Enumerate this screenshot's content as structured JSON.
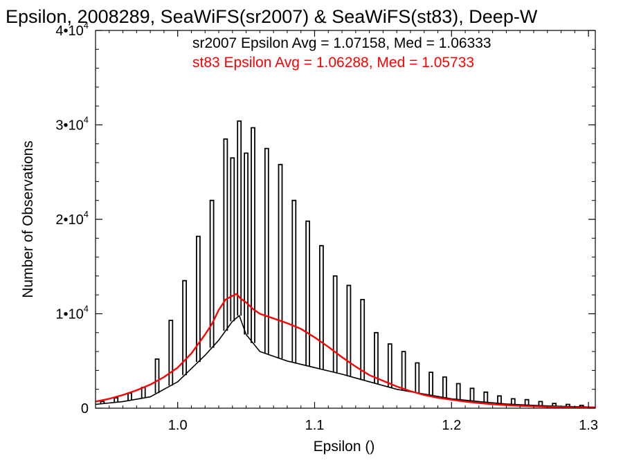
{
  "chart_data": {
    "type": "bar",
    "title": "Epsilon, 2008289, SeaWiFS(sr2007) & SeaWiFS(st83), Deep-W",
    "xlabel": "Epsilon ()",
    "ylabel": "Number of Observations",
    "xlim": [
      0.94,
      1.305
    ],
    "ylim": [
      0,
      40000
    ],
    "x_ticks": [
      {
        "value": 1.0,
        "label": "1.0"
      },
      {
        "value": 1.1,
        "label": "1.1"
      },
      {
        "value": 1.2,
        "label": "1.2"
      },
      {
        "value": 1.3,
        "label": "1.3"
      }
    ],
    "y_ticks": [
      {
        "value": 0,
        "mantissa": "0",
        "exponent": ""
      },
      {
        "value": 10000,
        "mantissa": "1•10",
        "exponent": "4"
      },
      {
        "value": 20000,
        "mantissa": "2•10",
        "exponent": "4"
      },
      {
        "value": 30000,
        "mantissa": "3•10",
        "exponent": "4"
      },
      {
        "value": 40000,
        "mantissa": "4•10",
        "exponent": "4"
      }
    ],
    "annotations": [
      {
        "text": "sr2007 Epsilon Avg = 1.07158, Med = 1.06333",
        "color": "#000000"
      },
      {
        "text": "st83 Epsilon Avg = 1.06288, Med = 1.05733",
        "color": "#ff0000"
      }
    ],
    "grid": false,
    "series": [
      {
        "style": "histogram-spikes",
        "color": "#000000",
        "spikes": [
          [
            0.945,
            700
          ],
          [
            0.955,
            1100
          ],
          [
            0.965,
            1600
          ],
          [
            0.975,
            2200
          ],
          [
            0.985,
            5200
          ],
          [
            0.995,
            9300
          ],
          [
            1.005,
            13500
          ],
          [
            1.015,
            18200
          ],
          [
            1.025,
            22000
          ],
          [
            1.035,
            28500
          ],
          [
            1.04,
            26500
          ],
          [
            1.045,
            30400
          ],
          [
            1.05,
            27000
          ],
          [
            1.055,
            29700
          ],
          [
            1.065,
            27500
          ],
          [
            1.075,
            25800
          ],
          [
            1.085,
            22000
          ],
          [
            1.095,
            19800
          ],
          [
            1.105,
            17200
          ],
          [
            1.115,
            14000
          ],
          [
            1.125,
            13000
          ],
          [
            1.135,
            11500
          ],
          [
            1.145,
            8000
          ],
          [
            1.155,
            6800
          ],
          [
            1.165,
            6000
          ],
          [
            1.175,
            4800
          ],
          [
            1.185,
            3800
          ],
          [
            1.195,
            3300
          ],
          [
            1.205,
            2600
          ],
          [
            1.215,
            2100
          ],
          [
            1.225,
            1700
          ],
          [
            1.235,
            1300
          ],
          [
            1.245,
            1000
          ],
          [
            1.255,
            900
          ],
          [
            1.265,
            700
          ],
          [
            1.275,
            500
          ],
          [
            1.285,
            400
          ],
          [
            1.295,
            300
          ]
        ],
        "baseline": [
          [
            0.94,
            400
          ],
          [
            0.96,
            700
          ],
          [
            0.98,
            1200
          ],
          [
            1.0,
            2800
          ],
          [
            1.02,
            5600
          ],
          [
            1.03,
            7200
          ],
          [
            1.04,
            9200
          ],
          [
            1.045,
            9800
          ],
          [
            1.05,
            7800
          ],
          [
            1.06,
            6000
          ],
          [
            1.08,
            5000
          ],
          [
            1.1,
            4300
          ],
          [
            1.12,
            3600
          ],
          [
            1.14,
            2800
          ],
          [
            1.16,
            2000
          ],
          [
            1.18,
            1500
          ],
          [
            1.2,
            1000
          ],
          [
            1.22,
            700
          ],
          [
            1.24,
            450
          ],
          [
            1.26,
            300
          ],
          [
            1.28,
            200
          ],
          [
            1.305,
            100
          ]
        ]
      },
      {
        "style": "line",
        "color": "#ff0000",
        "points": [
          [
            0.94,
            700
          ],
          [
            0.95,
            1000
          ],
          [
            0.96,
            1400
          ],
          [
            0.97,
            1900
          ],
          [
            0.98,
            2500
          ],
          [
            0.99,
            3300
          ],
          [
            1.0,
            4300
          ],
          [
            1.01,
            5800
          ],
          [
            1.02,
            7800
          ],
          [
            1.025,
            8900
          ],
          [
            1.03,
            10400
          ],
          [
            1.035,
            11500
          ],
          [
            1.04,
            11900
          ],
          [
            1.043,
            12100
          ],
          [
            1.046,
            11600
          ],
          [
            1.05,
            11200
          ],
          [
            1.055,
            10500
          ],
          [
            1.06,
            10000
          ],
          [
            1.07,
            9500
          ],
          [
            1.08,
            9000
          ],
          [
            1.09,
            8400
          ],
          [
            1.1,
            7500
          ],
          [
            1.11,
            6500
          ],
          [
            1.12,
            5400
          ],
          [
            1.13,
            4400
          ],
          [
            1.14,
            3500
          ],
          [
            1.15,
            2900
          ],
          [
            1.16,
            2300
          ],
          [
            1.17,
            1800
          ],
          [
            1.18,
            1400
          ],
          [
            1.19,
            1100
          ],
          [
            1.2,
            900
          ],
          [
            1.21,
            700
          ],
          [
            1.22,
            550
          ],
          [
            1.23,
            420
          ],
          [
            1.24,
            330
          ],
          [
            1.25,
            260
          ],
          [
            1.26,
            200
          ],
          [
            1.27,
            150
          ],
          [
            1.28,
            110
          ],
          [
            1.29,
            80
          ],
          [
            1.305,
            50
          ]
        ]
      }
    ]
  }
}
